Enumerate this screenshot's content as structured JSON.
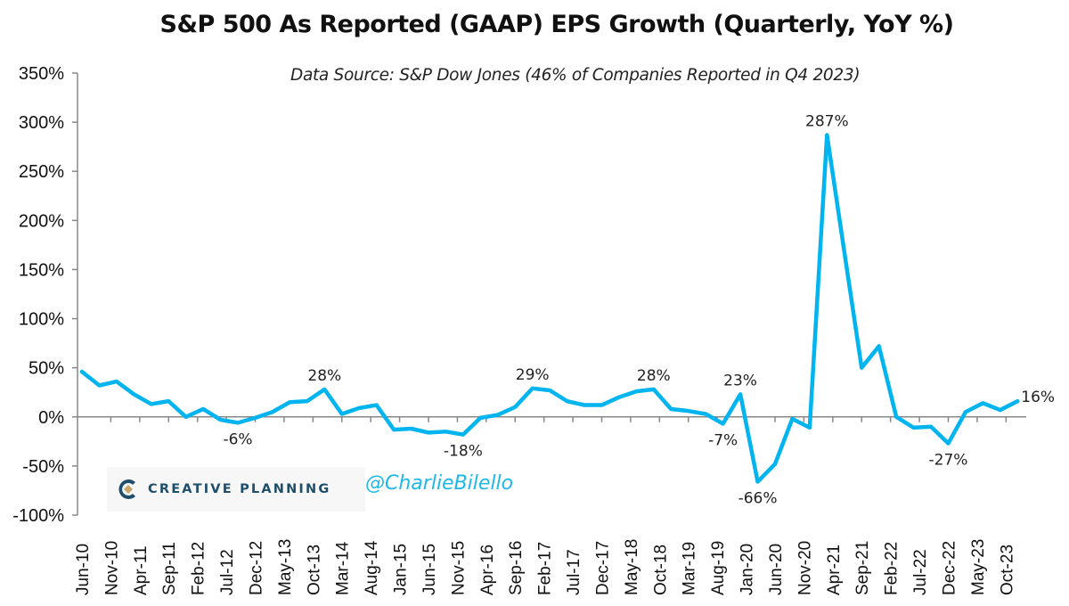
{
  "title": "S&P 500 As Reported (GAAP) EPS Growth (Quarterly, YoY %)",
  "subtitle": "Data Source: S&P Dow Jones (46% of Companies Reported in Q4 2023)",
  "watermark": {
    "brand": "CREATIVE PLANNING",
    "handle": "@CharlieBilello",
    "brand_color": "#1f4e6b",
    "handle_color": "#1fb8e8"
  },
  "chart_data": {
    "type": "line",
    "title": "S&P 500 As Reported (GAAP) EPS Growth (Quarterly, YoY %)",
    "subtitle": "Data Source: S&P Dow Jones (46% of Companies Reported in Q4 2023)",
    "xlabel": "",
    "ylabel": "",
    "ylim": [
      -100,
      350
    ],
    "yticks": [
      -100,
      -50,
      0,
      50,
      100,
      150,
      200,
      250,
      300,
      350
    ],
    "ytick_labels": [
      "-100%",
      "-50%",
      "0%",
      "50%",
      "100%",
      "150%",
      "200%",
      "250%",
      "300%",
      "350%"
    ],
    "xtick_labels": [
      "Jun-10",
      "Nov-10",
      "Apr-11",
      "Sep-11",
      "Feb-12",
      "Jul-12",
      "Dec-12",
      "May-13",
      "Oct-13",
      "Mar-14",
      "Aug-14",
      "Jan-15",
      "Jun-15",
      "Nov-15",
      "Apr-16",
      "Sep-16",
      "Feb-17",
      "Jul-17",
      "Dec-17",
      "May-18",
      "Oct-18",
      "Mar-19",
      "Aug-19",
      "Jan-20",
      "Jun-20",
      "Nov-20",
      "Apr-21",
      "Sep-21",
      "Feb-22",
      "Jul-22",
      "Dec-22",
      "May-23",
      "Oct-23"
    ],
    "grid": false,
    "legend": "none",
    "line_color": "#00b4ef",
    "series": [
      {
        "name": "S&P 500 GAAP EPS Growth YoY %",
        "x": [
          "Jun-10",
          "Sep-10",
          "Dec-10",
          "Mar-11",
          "Jun-11",
          "Sep-11",
          "Dec-11",
          "Mar-12",
          "Jun-12",
          "Sep-12",
          "Dec-12",
          "Mar-13",
          "Jun-13",
          "Sep-13",
          "Dec-13",
          "Mar-14",
          "Jun-14",
          "Sep-14",
          "Dec-14",
          "Mar-15",
          "Jun-15",
          "Sep-15",
          "Dec-15",
          "Mar-16",
          "Jun-16",
          "Sep-16",
          "Dec-16",
          "Mar-17",
          "Jun-17",
          "Sep-17",
          "Dec-17",
          "Mar-18",
          "Jun-18",
          "Sep-18",
          "Dec-18",
          "Mar-19",
          "Jun-19",
          "Sep-19",
          "Dec-19",
          "Mar-20",
          "Jun-20",
          "Sep-20",
          "Dec-20",
          "Mar-21",
          "Jun-21",
          "Sep-21",
          "Dec-21",
          "Mar-22",
          "Jun-22",
          "Sep-22",
          "Dec-22",
          "Mar-23",
          "Jun-23",
          "Sep-23",
          "Dec-23"
        ],
        "values": [
          46,
          32,
          36,
          23,
          13,
          16,
          0,
          8,
          -3,
          -6,
          -1,
          5,
          15,
          16,
          28,
          3,
          9,
          12,
          -13,
          -12,
          -16,
          -15,
          -18,
          -1,
          2,
          10,
          29,
          27,
          16,
          12,
          12,
          20,
          26,
          28,
          8,
          6,
          3,
          -7,
          23,
          -66,
          -48,
          -2,
          -11,
          287,
          168,
          50,
          72,
          0,
          -11,
          -10,
          -27,
          5,
          14,
          7,
          16
        ]
      }
    ],
    "annotations": [
      {
        "x": "Sep-12",
        "text": "-6%",
        "position": "below"
      },
      {
        "x": "Dec-13",
        "text": "28%",
        "position": "above"
      },
      {
        "x": "Dec-15",
        "text": "-18%",
        "position": "below"
      },
      {
        "x": "Dec-16",
        "text": "29%",
        "position": "above"
      },
      {
        "x": "Sep-18",
        "text": "28%",
        "position": "above"
      },
      {
        "x": "Sep-19",
        "text": "-7%",
        "position": "below"
      },
      {
        "x": "Dec-19",
        "text": "23%",
        "position": "above"
      },
      {
        "x": "Mar-20",
        "text": "-66%",
        "position": "below"
      },
      {
        "x": "Mar-21",
        "text": "287%",
        "position": "above"
      },
      {
        "x": "Dec-22",
        "text": "-27%",
        "position": "below"
      },
      {
        "x": "Dec-23",
        "text": "16%",
        "position": "right"
      }
    ]
  }
}
